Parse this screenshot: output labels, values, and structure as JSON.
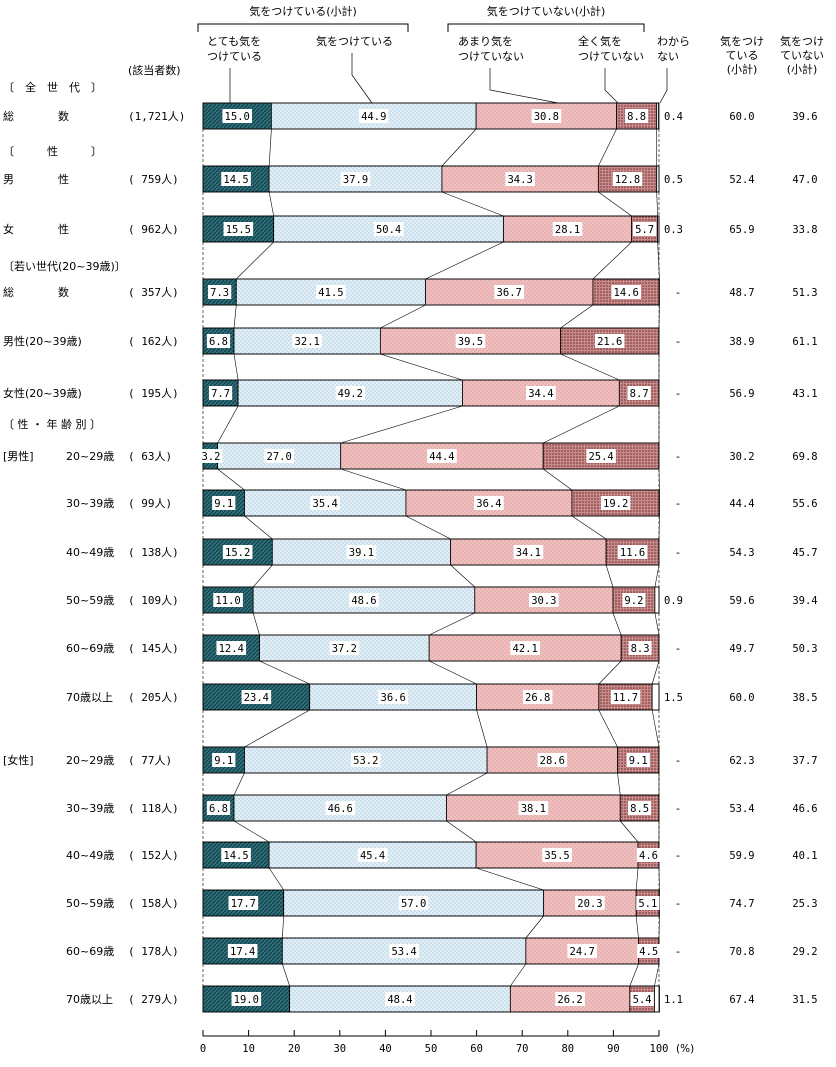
{
  "chart_data": {
    "type": "stacked-bar-horizontal",
    "unit": "(%)",
    "xlim": [
      0,
      100
    ],
    "x_ticks": [
      "0",
      "10",
      "20",
      "30",
      "40",
      "50",
      "60",
      "70",
      "80",
      "90",
      "100"
    ],
    "group_headers": {
      "care": "気をつけている(小計)",
      "nocare": "気をつけていない(小計)"
    },
    "legend": [
      {
        "key": "very",
        "label_lines": [
          "とても気を",
          "つけている"
        ],
        "color": "#2e6e78"
      },
      {
        "key": "some",
        "label_lines": [
          "気をつけている"
        ],
        "color": "#dcebf6"
      },
      {
        "key": "notmuch",
        "label_lines": [
          "あまり気を",
          "つけていない"
        ],
        "color": "#efb9b9"
      },
      {
        "key": "notatall",
        "label_lines": [
          "全く気を",
          "つけていない"
        ],
        "color": "#9c4f4f"
      },
      {
        "key": "unknown",
        "label_lines": [
          "わから",
          "ない"
        ],
        "color": "#ffffff"
      }
    ],
    "column_headers": {
      "count": "(該当者数)",
      "subtotal_care": [
        "気をつけ",
        "ている",
        "(小計)"
      ],
      "subtotal_nocare": [
        "気をつけ",
        "ていない",
        "(小計)"
      ]
    },
    "sections": [
      {
        "label": "〔　全　世　代　〕"
      },
      {
        "label": "〔　　　性　　　〕"
      },
      {
        "label": "〔若い世代(20~39歳)〕"
      },
      {
        "label": "〔 性 ・ 年 齢 別 〕"
      }
    ],
    "rows": [
      {
        "group": "",
        "label": "総　　　　数",
        "n": "(1,721人)",
        "values": [
          15.0,
          44.9,
          30.8,
          8.8,
          0.4
        ],
        "labels": [
          "15.0",
          "44.9",
          "30.8",
          "8.8",
          "0.4"
        ],
        "care": "60.0",
        "nocare": "39.6"
      },
      {
        "group": "",
        "label": "男　　　　性",
        "n": "(  759人)",
        "values": [
          14.5,
          37.9,
          34.3,
          12.8,
          0.5
        ],
        "labels": [
          "14.5",
          "37.9",
          "34.3",
          "12.8",
          "0.5"
        ],
        "care": "52.4",
        "nocare": "47.0"
      },
      {
        "group": "",
        "label": "女　　　　性",
        "n": "(  962人)",
        "values": [
          15.5,
          50.4,
          28.1,
          5.7,
          0.3
        ],
        "labels": [
          "15.5",
          "50.4",
          "28.1",
          "5.7",
          "0.3"
        ],
        "care": "65.9",
        "nocare": "33.8"
      },
      {
        "group": "",
        "label": "総　　　　数",
        "n": "(  357人)",
        "values": [
          7.3,
          41.5,
          36.7,
          14.6,
          0
        ],
        "labels": [
          "7.3",
          "41.5",
          "36.7",
          "14.6",
          "-"
        ],
        "care": "48.7",
        "nocare": "51.3"
      },
      {
        "group": "",
        "label": "男性(20~39歳)",
        "n": "(  162人)",
        "values": [
          6.8,
          32.1,
          39.5,
          21.6,
          0
        ],
        "labels": [
          "6.8",
          "32.1",
          "39.5",
          "21.6",
          "-"
        ],
        "care": "38.9",
        "nocare": "61.1"
      },
      {
        "group": "",
        "label": "女性(20~39歳)",
        "n": "(  195人)",
        "values": [
          7.7,
          49.2,
          34.4,
          8.7,
          0
        ],
        "labels": [
          "7.7",
          "49.2",
          "34.4",
          "8.7",
          "-"
        ],
        "care": "56.9",
        "nocare": "43.1"
      },
      {
        "group": "[男性]",
        "label": "20~29歳",
        "n": "(   63人)",
        "values": [
          3.2,
          27.0,
          44.4,
          25.4,
          0
        ],
        "labels": [
          "3.2",
          "27.0",
          "44.4",
          "25.4",
          "-"
        ],
        "care": "30.2",
        "nocare": "69.8"
      },
      {
        "group": "",
        "label": "30~39歳",
        "n": "(   99人)",
        "values": [
          9.1,
          35.4,
          36.4,
          19.2,
          0
        ],
        "labels": [
          "9.1",
          "35.4",
          "36.4",
          "19.2",
          "-"
        ],
        "care": "44.4",
        "nocare": "55.6"
      },
      {
        "group": "",
        "label": "40~49歳",
        "n": "(  138人)",
        "values": [
          15.2,
          39.1,
          34.1,
          11.6,
          0
        ],
        "labels": [
          "15.2",
          "39.1",
          "34.1",
          "11.6",
          "-"
        ],
        "care": "54.3",
        "nocare": "45.7"
      },
      {
        "group": "",
        "label": "50~59歳",
        "n": "(  109人)",
        "values": [
          11.0,
          48.6,
          30.3,
          9.2,
          0.9
        ],
        "labels": [
          "11.0",
          "48.6",
          "30.3",
          "9.2",
          "0.9"
        ],
        "care": "59.6",
        "nocare": "39.4"
      },
      {
        "group": "",
        "label": "60~69歳",
        "n": "(  145人)",
        "values": [
          12.4,
          37.2,
          42.1,
          8.3,
          0
        ],
        "labels": [
          "12.4",
          "37.2",
          "42.1",
          "8.3",
          "-"
        ],
        "care": "49.7",
        "nocare": "50.3"
      },
      {
        "group": "",
        "label": "70歳以上",
        "n": "(  205人)",
        "values": [
          23.4,
          36.6,
          26.8,
          11.7,
          1.5
        ],
        "labels": [
          "23.4",
          "36.6",
          "26.8",
          "11.7",
          "1.5"
        ],
        "care": "60.0",
        "nocare": "38.5"
      },
      {
        "group": "[女性]",
        "label": "20~29歳",
        "n": "(   77人)",
        "values": [
          9.1,
          53.2,
          28.6,
          9.1,
          0
        ],
        "labels": [
          "9.1",
          "53.2",
          "28.6",
          "9.1",
          "-"
        ],
        "care": "62.3",
        "nocare": "37.7"
      },
      {
        "group": "",
        "label": "30~39歳",
        "n": "(  118人)",
        "values": [
          6.8,
          46.6,
          38.1,
          8.5,
          0
        ],
        "labels": [
          "6.8",
          "46.6",
          "38.1",
          "8.5",
          "-"
        ],
        "care": "53.4",
        "nocare": "46.6"
      },
      {
        "group": "",
        "label": "40~49歳",
        "n": "(  152人)",
        "values": [
          14.5,
          45.4,
          35.5,
          4.6,
          0
        ],
        "labels": [
          "14.5",
          "45.4",
          "35.5",
          "4.6",
          "-"
        ],
        "care": "59.9",
        "nocare": "40.1"
      },
      {
        "group": "",
        "label": "50~59歳",
        "n": "(  158人)",
        "values": [
          17.7,
          57.0,
          20.3,
          5.1,
          0
        ],
        "labels": [
          "17.7",
          "57.0",
          "20.3",
          "5.1",
          "-"
        ],
        "care": "74.7",
        "nocare": "25.3"
      },
      {
        "group": "",
        "label": "60~69歳",
        "n": "(  178人)",
        "values": [
          17.4,
          53.4,
          24.7,
          4.5,
          0
        ],
        "labels": [
          "17.4",
          "53.4",
          "24.7",
          "4.5",
          "-"
        ],
        "care": "70.8",
        "nocare": "29.2"
      },
      {
        "group": "",
        "label": "70歳以上",
        "n": "(  279人)",
        "values": [
          19.0,
          48.4,
          26.2,
          5.4,
          1.1
        ],
        "labels": [
          "19.0",
          "48.4",
          "26.2",
          "5.4",
          "1.1"
        ],
        "care": "67.4",
        "nocare": "31.5"
      }
    ]
  }
}
